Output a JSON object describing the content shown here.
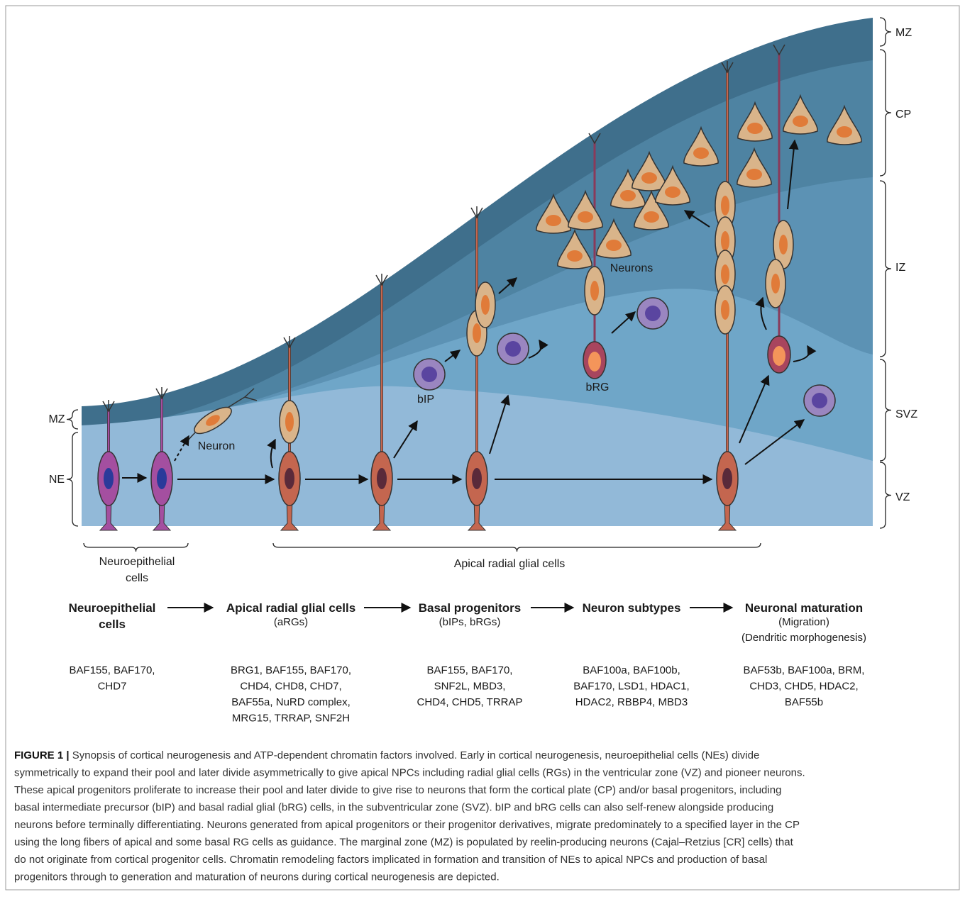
{
  "figure": {
    "left_zones": [
      "MZ",
      "NE"
    ],
    "right_zones": [
      "MZ",
      "CP",
      "IZ",
      "SVZ",
      "VZ"
    ],
    "cell_labels": [
      "Neuron",
      "bIP",
      "bRG",
      "Neurons"
    ],
    "group_labels": [
      [
        "Neuroepithelial",
        "cells"
      ],
      [
        "Apical radial glial cells"
      ]
    ],
    "stages": [
      {
        "title": [
          "Neuroepithelial",
          "cells"
        ],
        "factors": [
          "BAF155, BAF170,",
          "CHD7"
        ]
      },
      {
        "title": [
          "Apical radial glial cells"
        ],
        "notes": [
          "(aRGs)"
        ],
        "factors": [
          "BRG1, BAF155, BAF170,",
          "CHD4, CHD8, CHD7,",
          "BAF55a, NuRD complex,",
          "MRG15, TRRAP, SNF2H"
        ]
      },
      {
        "title": [
          "Basal progenitors"
        ],
        "notes": [
          "(bIPs, bRGs)"
        ],
        "factors": [
          "BAF155, BAF170,",
          "SNF2L, MBD3,",
          "CHD4, CHD5, TRRAP"
        ]
      },
      {
        "title": [
          "Neuron subtypes"
        ],
        "factors": [
          "BAF100a, BAF100b,",
          "BAF170, LSD1, HDAC1,",
          "HDAC2, RBBP4, MBD3"
        ]
      },
      {
        "title": [
          "Neuronal maturation"
        ],
        "notes": [
          "(Migration)",
          "(Dendritic morphogenesis)"
        ],
        "factors": [
          "BAF53b, BAF100a, BRM,",
          "CHD3, CHD5, HDAC2,",
          "BAF55b"
        ]
      }
    ]
  },
  "caption": {
    "label": "FIGURE 1 |",
    "lines": [
      "Synopsis of cortical neurogenesis and ATP-dependent chromatin factors involved. Early in cortical neurogenesis, neuroepithelial cells (NEs) divide",
      "symmetrically to expand their pool and later divide asymmetrically to give apical NPCs including radial glial cells (RGs) in the ventricular zone (VZ) and pioneer neurons.",
      "These apical progenitors proliferate to increase their pool and later divide to give rise to neurons that form the cortical plate (CP) and/or basal progenitors, including",
      "basal intermediate precursor (bIP) and basal radial glial (bRG) cells, in the subventricular zone (SVZ). bIP and bRG cells can also self-renew alongside producing",
      "neurons before terminally differentiating. Neurons generated from apical progenitors or their progenitor derivatives, migrate predominately to a specified layer in the CP",
      "using the long fibers of apical and some basal RG cells as guidance. The marginal zone (MZ) is populated by reelin-producing neurons (Cajal–Retzius [CR] cells) that",
      "do not originate from cortical progenitor cells. Chromatin remodeling factors implicated in formation and transition of NEs to apical NPCs and production of basal",
      "progenitors through to generation and maturation of neurons during cortical neurogenesis are depicted."
    ]
  }
}
